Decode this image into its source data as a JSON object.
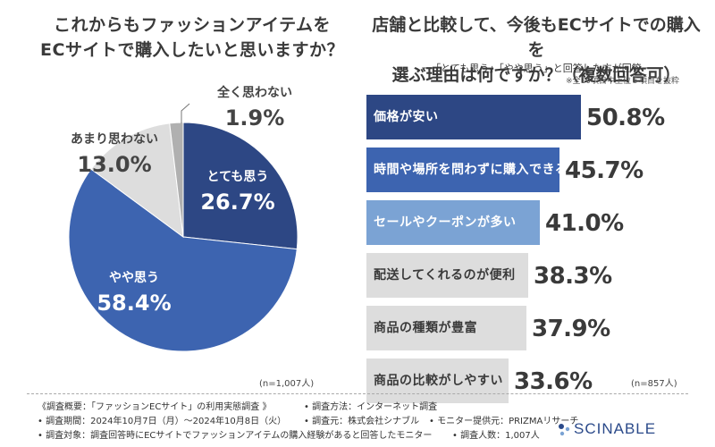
{
  "left_title": {
    "line1": "これからもファッションアイテムを",
    "line2": "ECサイトで購入したいと思いますか？"
  },
  "right_title": {
    "line1": "店舗と比較して、今後もECサイトでの購入を",
    "line2": "選ぶ理由は何ですか？（複数回答可）"
  },
  "right_subtitle": "ー「とても思う」「やや思う」と回答した方が回答ー",
  "right_note": "※全10項目中上位６項目を抜粋",
  "chart_data": [
    {
      "type": "pie",
      "title": "これからもファッションアイテムをECサイトで購入したいと思いますか？",
      "slices": [
        {
          "label": "とても思う",
          "value": 26.7,
          "display": "26.7%",
          "color": "#2d4784"
        },
        {
          "label": "やや思う",
          "value": 58.4,
          "display": "58.4%",
          "color": "#3d64b0"
        },
        {
          "label": "あまり思わない",
          "value": 13.0,
          "display": "13.0%",
          "color": "#dddddd"
        },
        {
          "label": "全く思わない",
          "value": 1.9,
          "display": "1.9%",
          "color": "#b0b0b0"
        }
      ],
      "n": "(n=1,007人)"
    },
    {
      "type": "bar",
      "orientation": "horizontal",
      "title": "店舗と比較して、今後もECサイトでの購入を選ぶ理由は何ですか？（複数回答可）",
      "categories": [
        "価格が安い",
        "時間や場所を問わずに購入できる",
        "セールやクーポンが多い",
        "配送してくれるのが便利",
        "商品の種類が豊富",
        "商品の比較がしやすい"
      ],
      "values": [
        50.8,
        45.7,
        41.0,
        38.3,
        37.9,
        33.6
      ],
      "display": [
        "50.8%",
        "45.7%",
        "41.0%",
        "38.3%",
        "37.9%",
        "33.6%"
      ],
      "colors": [
        "#2d4784",
        "#3d64b0",
        "#7ba3d4",
        "#dddddd",
        "#dddddd",
        "#dddddd"
      ],
      "label_colors": [
        "#ffffff",
        "#ffffff",
        "#ffffff",
        "#3a3a3a",
        "#3a3a3a",
        "#3a3a3a"
      ],
      "n": "(n=857人)"
    }
  ],
  "footer": {
    "overview": "《調査概要：「ファッションECサイト」の利用実態調査 》",
    "method": "• 調査方法：インターネット調査",
    "period": "• 調査期間：2024年10月7日（月）〜2024年10月8日（火）",
    "source": "• 調査元：株式会社シナブル",
    "monitor": "• モニター提供元：PRIZMAリサーチ",
    "target": "• 調査対象：調査回答時にECサイトでファッションアイテムの購入経験があると回答したモニター",
    "count": "• 調査人数：1,007人"
  },
  "logo": {
    "text": "SCINABLE",
    "color": "#2b4a8a"
  }
}
